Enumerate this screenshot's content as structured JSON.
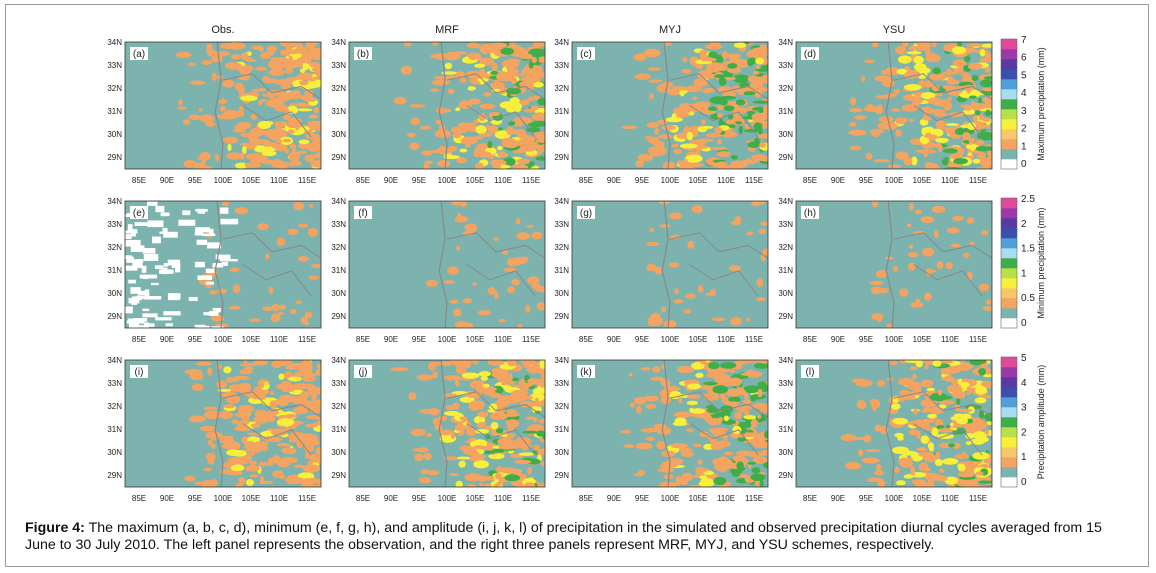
{
  "columns": [
    "Obs.",
    "MRF",
    "MYJ",
    "YSU"
  ],
  "rows": [
    {
      "panels": [
        "(a)",
        "(b)",
        "(c)",
        "(d)"
      ],
      "colorbar": {
        "title": "Maximum precipitation (mm)",
        "ticks": [
          "7",
          "6",
          "5",
          "4",
          "3",
          "2",
          "1",
          "0"
        ]
      }
    },
    {
      "panels": [
        "(e)",
        "(f)",
        "(g)",
        "(h)"
      ],
      "colorbar": {
        "title": "Minimum precipitation (mm)",
        "ticks": [
          "2.5",
          "2",
          "1.5",
          "1",
          "0.5",
          "0"
        ]
      }
    },
    {
      "panels": [
        "(i)",
        "(j)",
        "(k)",
        "(l)"
      ],
      "colorbar": {
        "title": "Precipitation amplitude (mm)",
        "ticks": [
          "5",
          "4",
          "3",
          "2",
          "1",
          "0"
        ]
      }
    }
  ],
  "lat_ticks": [
    "34N",
    "33N",
    "32N",
    "31N",
    "30N",
    "29N"
  ],
  "lon_ticks": [
    "85E",
    "90E",
    "95E",
    "100E",
    "105E",
    "110E",
    "115E"
  ],
  "caption": {
    "label": "Figure 4:",
    "text": " The maximum (a, b, c, d), minimum (e, f, g, h), and amplitude (i, j, k, l) of precipitation in the simulated and observed precipitation diurnal cycles averaged from 15 June to 30 July 2010. The left panel represents the observation, and the right three panels represent MRF, MYJ, and YSU schemes, respectively."
  }
}
